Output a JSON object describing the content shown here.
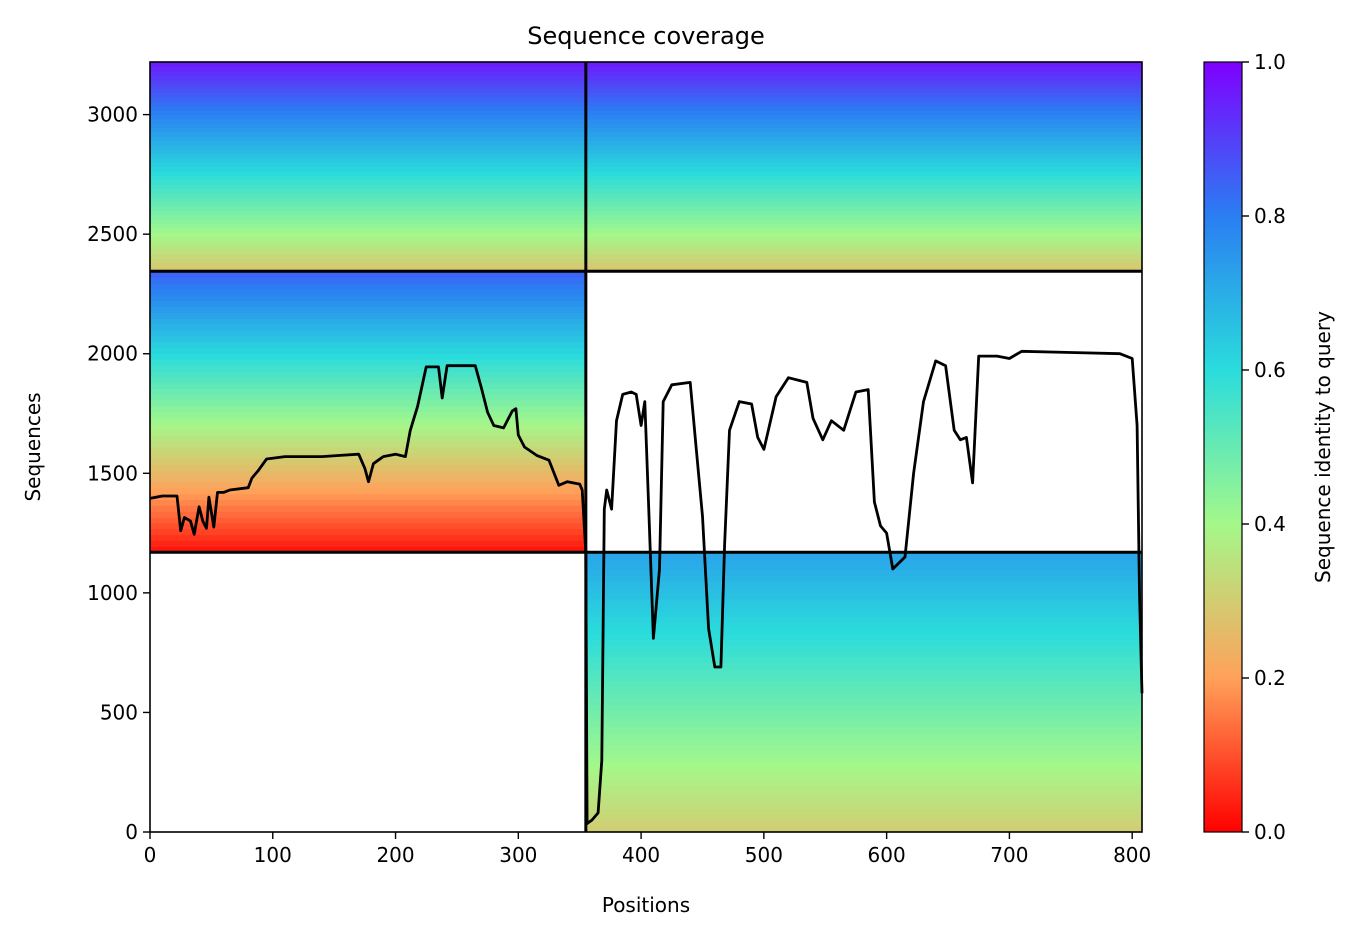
{
  "chart_data": {
    "type": "heatmap",
    "title": "Sequence coverage",
    "xlabel": "Positions",
    "ylabel": "Sequences",
    "xlim": [
      0,
      808
    ],
    "ylim": [
      0,
      3220
    ],
    "x_ticks": [
      0,
      100,
      200,
      300,
      400,
      500,
      600,
      700,
      800
    ],
    "y_ticks": [
      0,
      500,
      1000,
      1500,
      2000,
      2500,
      3000
    ],
    "colorbar": {
      "label": "Sequence identity to query",
      "colormap": "rainbow_r",
      "range": [
        0,
        1
      ],
      "ticks": [
        0.0,
        0.2,
        0.4,
        0.6,
        0.8,
        1.0
      ],
      "tick_labels": [
        "0.0",
        "0.2",
        "0.4",
        "0.6",
        "0.8",
        "1.0"
      ],
      "stops": [
        {
          "value": 0.0,
          "color": "#ff0000"
        },
        {
          "value": 0.2,
          "color": "#ffa15a"
        },
        {
          "value": 0.4,
          "color": "#a4f88a"
        },
        {
          "value": 0.6,
          "color": "#2adcdc"
        },
        {
          "value": 0.8,
          "color": "#2a7ef2"
        },
        {
          "value": 1.0,
          "color": "#7f00ff"
        }
      ]
    },
    "chain_boundaries": {
      "x": [
        355
      ],
      "y": [
        1170,
        2345
      ]
    },
    "blocks": [
      {
        "name": "chain-A-pair",
        "x0": 0,
        "x1": 355,
        "y0": 2345,
        "y1": 3220,
        "identity_bottom": 0.28,
        "identity_top": 0.96
      },
      {
        "name": "chain-B-pair",
        "x0": 355,
        "x1": 808,
        "y0": 2345,
        "y1": 3220,
        "identity_bottom": 0.28,
        "identity_top": 0.96
      },
      {
        "name": "chain-A-single",
        "x0": 0,
        "x1": 355,
        "y0": 1170,
        "y1": 2345,
        "identity_bottom": 0.02,
        "identity_top": 0.85
      },
      {
        "name": "chain-B-single",
        "x0": 355,
        "x1": 808,
        "y0": 0,
        "y1": 1170,
        "identity_bottom": 0.3,
        "identity_top": 0.72
      }
    ],
    "coverage_line": {
      "name": "coverage",
      "color": "#000000",
      "points": [
        [
          0,
          1395
        ],
        [
          10,
          1405
        ],
        [
          22,
          1405
        ],
        [
          25,
          1260
        ],
        [
          28,
          1315
        ],
        [
          33,
          1300
        ],
        [
          36,
          1245
        ],
        [
          40,
          1360
        ],
        [
          43,
          1300
        ],
        [
          46,
          1270
        ],
        [
          48,
          1400
        ],
        [
          52,
          1275
        ],
        [
          55,
          1420
        ],
        [
          60,
          1420
        ],
        [
          65,
          1430
        ],
        [
          80,
          1440
        ],
        [
          83,
          1480
        ],
        [
          88,
          1510
        ],
        [
          95,
          1560
        ],
        [
          110,
          1570
        ],
        [
          140,
          1570
        ],
        [
          155,
          1575
        ],
        [
          170,
          1580
        ],
        [
          175,
          1520
        ],
        [
          178,
          1465
        ],
        [
          182,
          1540
        ],
        [
          190,
          1570
        ],
        [
          200,
          1580
        ],
        [
          208,
          1570
        ],
        [
          212,
          1680
        ],
        [
          218,
          1780
        ],
        [
          225,
          1945
        ],
        [
          235,
          1945
        ],
        [
          238,
          1815
        ],
        [
          242,
          1950
        ],
        [
          265,
          1950
        ],
        [
          270,
          1855
        ],
        [
          275,
          1755
        ],
        [
          280,
          1700
        ],
        [
          288,
          1690
        ],
        [
          295,
          1760
        ],
        [
          298,
          1770
        ],
        [
          300,
          1660
        ],
        [
          305,
          1610
        ],
        [
          315,
          1575
        ],
        [
          325,
          1555
        ],
        [
          333,
          1450
        ],
        [
          340,
          1465
        ],
        [
          350,
          1455
        ],
        [
          352,
          1430
        ],
        [
          355,
          1170
        ],
        [
          356,
          35
        ],
        [
          360,
          50
        ],
        [
          365,
          80
        ],
        [
          368,
          300
        ],
        [
          370,
          1350
        ],
        [
          372,
          1430
        ],
        [
          376,
          1350
        ],
        [
          380,
          1720
        ],
        [
          385,
          1830
        ],
        [
          392,
          1840
        ],
        [
          396,
          1830
        ],
        [
          400,
          1700
        ],
        [
          403,
          1800
        ],
        [
          406,
          1380
        ],
        [
          410,
          810
        ],
        [
          415,
          1100
        ],
        [
          418,
          1800
        ],
        [
          425,
          1870
        ],
        [
          440,
          1880
        ],
        [
          445,
          1600
        ],
        [
          450,
          1320
        ],
        [
          455,
          850
        ],
        [
          460,
          690
        ],
        [
          465,
          690
        ],
        [
          468,
          1200
        ],
        [
          472,
          1680
        ],
        [
          480,
          1800
        ],
        [
          490,
          1790
        ],
        [
          495,
          1650
        ],
        [
          500,
          1600
        ],
        [
          510,
          1820
        ],
        [
          520,
          1900
        ],
        [
          535,
          1880
        ],
        [
          540,
          1730
        ],
        [
          548,
          1640
        ],
        [
          555,
          1720
        ],
        [
          565,
          1680
        ],
        [
          575,
          1840
        ],
        [
          585,
          1850
        ],
        [
          590,
          1380
        ],
        [
          595,
          1280
        ],
        [
          600,
          1250
        ],
        [
          605,
          1100
        ],
        [
          615,
          1150
        ],
        [
          622,
          1500
        ],
        [
          630,
          1800
        ],
        [
          640,
          1970
        ],
        [
          648,
          1950
        ],
        [
          655,
          1680
        ],
        [
          660,
          1640
        ],
        [
          665,
          1650
        ],
        [
          670,
          1460
        ],
        [
          675,
          1990
        ],
        [
          690,
          1990
        ],
        [
          700,
          1980
        ],
        [
          710,
          2010
        ],
        [
          750,
          2005
        ],
        [
          790,
          2000
        ],
        [
          800,
          1980
        ],
        [
          804,
          1700
        ],
        [
          806,
          1000
        ],
        [
          808,
          580
        ]
      ]
    }
  }
}
